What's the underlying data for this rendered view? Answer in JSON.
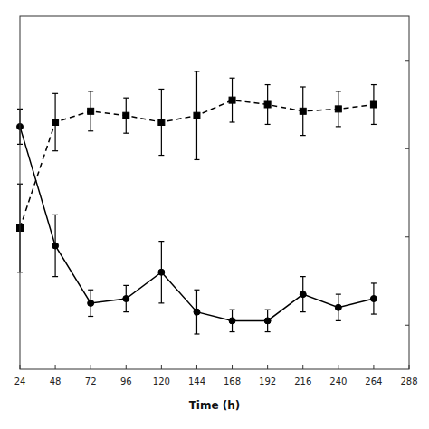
{
  "chart_data": {
    "type": "line",
    "xlabel": "Time (h)",
    "x": [
      24,
      48,
      72,
      96,
      120,
      144,
      168,
      192,
      216,
      240,
      264
    ],
    "series": [
      {
        "values": [
          8.5,
          5.8,
          4.5,
          4.6,
          5.2,
          4.3,
          4.1,
          4.1,
          4.7,
          4.4,
          4.6
        ],
        "yerr": [
          0.4,
          0.7,
          0.3,
          0.3,
          0.7,
          0.5,
          0.25,
          0.25,
          0.4,
          0.3,
          0.35
        ],
        "color": "#000000",
        "marker": "circle",
        "line_style": "solid"
      },
      {
        "values": [
          6.2,
          8.6,
          8.85,
          8.75,
          8.6,
          8.75,
          9.1,
          9.0,
          8.85,
          8.9,
          9.0
        ],
        "yerr": [
          1.0,
          0.65,
          0.45,
          0.4,
          0.75,
          1.0,
          0.5,
          0.45,
          0.55,
          0.4,
          0.45
        ],
        "color": "#000000",
        "marker": "square",
        "line_style": "dashed"
      }
    ],
    "xlim": [
      24,
      288
    ],
    "xticks": [
      24,
      48,
      72,
      96,
      120,
      144,
      168,
      192,
      216,
      240,
      264,
      288
    ],
    "ylim": [
      3.0,
      11.0
    ],
    "yticks": [
      4.0,
      6.0,
      8.0,
      10.0
    ],
    "tick_labels": "x",
    "grid": false
  }
}
